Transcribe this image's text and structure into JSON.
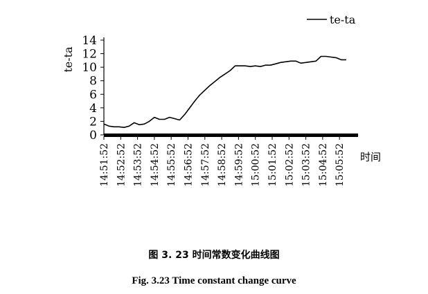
{
  "chart_data": {
    "type": "line",
    "ylabel": "te-ta",
    "xlabel": "时间",
    "ylim": [
      0,
      14
    ],
    "yticks": [
      0,
      2,
      4,
      6,
      8,
      10,
      12,
      14
    ],
    "xticks": [
      "14:51:52",
      "14:52:52",
      "14:53:52",
      "14:54:52",
      "14:55:52",
      "14:56:52",
      "14:57:52",
      "14:58:52",
      "14:59:52",
      "15:00:52",
      "15:01:52",
      "15:02:52",
      "15:03:52",
      "15:04:52",
      "15:05:52"
    ],
    "grid": false,
    "legend_position": "top-right",
    "series": [
      {
        "name": "te-ta",
        "color": "#000000",
        "x_minutes": [
          0,
          0.3,
          0.6,
          0.9,
          1.2,
          1.5,
          1.8,
          2.1,
          2.4,
          2.7,
          3.0,
          3.3,
          3.6,
          3.9,
          4.2,
          4.5,
          4.8,
          5.1,
          5.4,
          5.7,
          6.0,
          6.3,
          6.6,
          6.9,
          7.2,
          7.5,
          7.8,
          8.1,
          8.4,
          8.7,
          9.0,
          9.3,
          9.6,
          9.9,
          10.2,
          10.5,
          10.8,
          11.1,
          11.4,
          11.7,
          12.0,
          12.3,
          12.6,
          12.9,
          13.2,
          13.5,
          13.8,
          14.1,
          14.4
        ],
        "values": [
          1.6,
          1.3,
          1.2,
          1.2,
          1.1,
          1.3,
          1.8,
          1.5,
          1.6,
          2.0,
          2.6,
          2.3,
          2.3,
          2.6,
          2.4,
          2.2,
          3.0,
          4.0,
          5.0,
          5.9,
          6.6,
          7.3,
          7.9,
          8.5,
          9.0,
          9.5,
          10.2,
          10.2,
          10.2,
          10.1,
          10.2,
          10.1,
          10.3,
          10.3,
          10.5,
          10.7,
          10.8,
          10.9,
          10.9,
          10.6,
          10.7,
          10.8,
          10.9,
          11.6,
          11.6,
          11.5,
          11.4,
          11.1,
          11.1
        ]
      }
    ]
  },
  "caption_cn": "图 3. 23  时间常数变化曲线图",
  "caption_en": "Fig. 3.23 Time constant change curve"
}
